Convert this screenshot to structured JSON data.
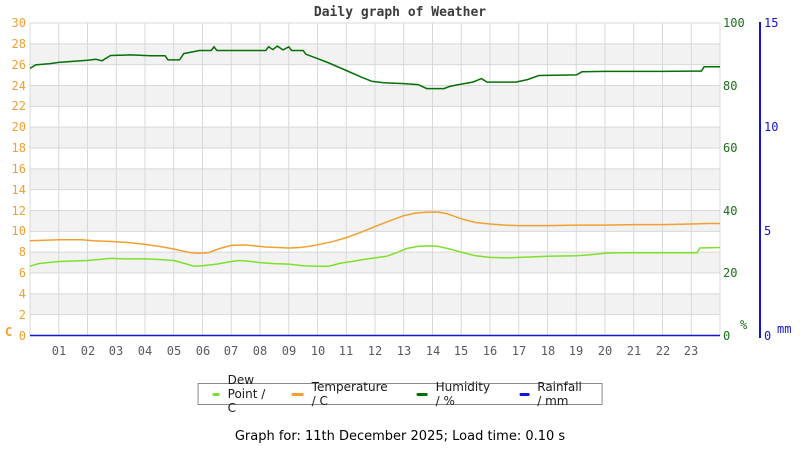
{
  "caption": "Graph for: 11th December 2025; Load time: 0.10 s",
  "chart_data": {
    "type": "line",
    "title": "Daily graph of Weather",
    "x_axis": {
      "range": [
        0,
        24
      ],
      "tick_labels": [
        "01",
        "02",
        "03",
        "04",
        "05",
        "06",
        "07",
        "08",
        "09",
        "10",
        "11",
        "12",
        "13",
        "14",
        "15",
        "16",
        "17",
        "18",
        "19",
        "20",
        "21",
        "22",
        "23"
      ],
      "label_color": "#5a5a5a"
    },
    "y_axes": [
      {
        "id": "C",
        "side": "left",
        "unit": "C",
        "range": [
          0,
          30
        ],
        "ticks": [
          0,
          2,
          4,
          6,
          8,
          10,
          12,
          14,
          16,
          18,
          20,
          22,
          24,
          26,
          28,
          30
        ],
        "color": "#f0a030"
      },
      {
        "id": "pct",
        "side": "right",
        "unit": "%",
        "range": [
          0,
          100
        ],
        "ticks": [
          0,
          20,
          40,
          60,
          80,
          100
        ],
        "color": "#1c6e1c"
      },
      {
        "id": "mm",
        "side": "right_outer",
        "unit": "mm",
        "range": [
          0,
          15
        ],
        "ticks": [
          0,
          5,
          10,
          15
        ],
        "color": "#1414d2"
      }
    ],
    "style": {
      "stripe_color": "#f2f2f2",
      "grid_color": "#d8d8d8",
      "background": "#ffffff"
    },
    "legend_position": "bottom",
    "series": [
      {
        "name": "dew-point",
        "legend_label": "Dew Point / C",
        "color": "#7fe02a",
        "axis": "C",
        "points": [
          [
            0,
            6.65
          ],
          [
            0.3,
            6.9
          ],
          [
            0.6,
            7.0
          ],
          [
            1,
            7.1
          ],
          [
            1.5,
            7.15
          ],
          [
            2,
            7.2
          ],
          [
            2.4,
            7.3
          ],
          [
            2.8,
            7.4
          ],
          [
            3.3,
            7.35
          ],
          [
            4,
            7.35
          ],
          [
            4.5,
            7.3
          ],
          [
            5,
            7.2
          ],
          [
            5.4,
            6.9
          ],
          [
            5.7,
            6.65
          ],
          [
            6,
            6.7
          ],
          [
            6.5,
            6.85
          ],
          [
            7,
            7.1
          ],
          [
            7.3,
            7.2
          ],
          [
            7.7,
            7.1
          ],
          [
            8,
            7.0
          ],
          [
            8.5,
            6.9
          ],
          [
            9,
            6.85
          ],
          [
            9.5,
            6.7
          ],
          [
            10,
            6.65
          ],
          [
            10.4,
            6.65
          ],
          [
            10.8,
            6.95
          ],
          [
            11.2,
            7.1
          ],
          [
            11.6,
            7.3
          ],
          [
            12,
            7.45
          ],
          [
            12.4,
            7.6
          ],
          [
            12.8,
            8.0
          ],
          [
            13.1,
            8.35
          ],
          [
            13.5,
            8.55
          ],
          [
            13.9,
            8.6
          ],
          [
            14.2,
            8.55
          ],
          [
            14.6,
            8.3
          ],
          [
            15,
            8.0
          ],
          [
            15.5,
            7.65
          ],
          [
            16,
            7.5
          ],
          [
            16.6,
            7.45
          ],
          [
            17,
            7.5
          ],
          [
            17.5,
            7.55
          ],
          [
            18,
            7.6
          ],
          [
            19,
            7.65
          ],
          [
            19.5,
            7.75
          ],
          [
            20,
            7.9
          ],
          [
            20.5,
            7.95
          ],
          [
            22,
            7.95
          ],
          [
            23.2,
            7.95
          ],
          [
            23.3,
            8.4
          ],
          [
            24,
            8.45
          ]
        ]
      },
      {
        "name": "temperature",
        "legend_label": "Temperature / C",
        "color": "#f0a030",
        "axis": "C",
        "points": [
          [
            0,
            9.1
          ],
          [
            0.5,
            9.15
          ],
          [
            1,
            9.2
          ],
          [
            1.8,
            9.2
          ],
          [
            2.2,
            9.1
          ],
          [
            3,
            9.0
          ],
          [
            3.5,
            8.9
          ],
          [
            4,
            8.75
          ],
          [
            4.5,
            8.55
          ],
          [
            5,
            8.3
          ],
          [
            5.5,
            8.0
          ],
          [
            5.8,
            7.9
          ],
          [
            6.2,
            7.95
          ],
          [
            6.6,
            8.35
          ],
          [
            7,
            8.65
          ],
          [
            7.5,
            8.7
          ],
          [
            7.8,
            8.6
          ],
          [
            8.2,
            8.5
          ],
          [
            8.6,
            8.45
          ],
          [
            9,
            8.4
          ],
          [
            9.4,
            8.45
          ],
          [
            9.8,
            8.6
          ],
          [
            10.5,
            9.0
          ],
          [
            11,
            9.4
          ],
          [
            11.5,
            9.9
          ],
          [
            12,
            10.45
          ],
          [
            12.5,
            11.0
          ],
          [
            13,
            11.5
          ],
          [
            13.4,
            11.75
          ],
          [
            13.8,
            11.85
          ],
          [
            14.2,
            11.85
          ],
          [
            14.5,
            11.7
          ],
          [
            15,
            11.2
          ],
          [
            15.5,
            10.85
          ],
          [
            16,
            10.7
          ],
          [
            16.5,
            10.6
          ],
          [
            17,
            10.55
          ],
          [
            18,
            10.55
          ],
          [
            19,
            10.6
          ],
          [
            20,
            10.6
          ],
          [
            21,
            10.65
          ],
          [
            22,
            10.65
          ],
          [
            23,
            10.7
          ],
          [
            23.6,
            10.75
          ],
          [
            24,
            10.75
          ]
        ]
      },
      {
        "name": "humidity",
        "legend_label": "Humidity / %",
        "color": "#066f06",
        "axis": "pct",
        "points": [
          [
            0,
            85.5
          ],
          [
            0.2,
            86.6
          ],
          [
            0.7,
            87.0
          ],
          [
            1,
            87.4
          ],
          [
            1.6,
            87.8
          ],
          [
            2,
            88.1
          ],
          [
            2.3,
            88.4
          ],
          [
            2.5,
            87.9
          ],
          [
            2.8,
            89.6
          ],
          [
            3.5,
            89.8
          ],
          [
            4.2,
            89.5
          ],
          [
            4.7,
            89.5
          ],
          [
            4.8,
            88.2
          ],
          [
            5.2,
            88.2
          ],
          [
            5.35,
            90.2
          ],
          [
            5.9,
            91.2
          ],
          [
            6.3,
            91.2
          ],
          [
            6.4,
            92.4
          ],
          [
            6.5,
            91.2
          ],
          [
            8.2,
            91.2
          ],
          [
            8.3,
            92.4
          ],
          [
            8.45,
            91.5
          ],
          [
            8.6,
            92.6
          ],
          [
            8.8,
            91.4
          ],
          [
            9,
            92.4
          ],
          [
            9.1,
            91.2
          ],
          [
            9.5,
            91.2
          ],
          [
            9.6,
            90.0
          ],
          [
            10,
            88.6
          ],
          [
            10.4,
            87.2
          ],
          [
            11,
            84.8
          ],
          [
            11.5,
            82.8
          ],
          [
            11.9,
            81.3
          ],
          [
            12.3,
            80.9
          ],
          [
            13,
            80.6
          ],
          [
            13.5,
            80.3
          ],
          [
            13.8,
            79.0
          ],
          [
            14.4,
            79.0
          ],
          [
            14.6,
            79.7
          ],
          [
            14.9,
            80.3
          ],
          [
            15.4,
            81.1
          ],
          [
            15.7,
            82.2
          ],
          [
            15.9,
            81.1
          ],
          [
            16.9,
            81.1
          ],
          [
            17.3,
            81.9
          ],
          [
            17.7,
            83.2
          ],
          [
            19,
            83.4
          ],
          [
            19.2,
            84.4
          ],
          [
            20,
            84.5
          ],
          [
            22,
            84.5
          ],
          [
            23,
            84.6
          ],
          [
            23.35,
            84.6
          ],
          [
            23.45,
            86.0
          ],
          [
            24,
            86.0
          ]
        ]
      },
      {
        "name": "rainfall",
        "legend_label": "Rainfall / mm",
        "color": "#1414d2",
        "axis": "mm",
        "points": [
          [
            0,
            0
          ],
          [
            24,
            0
          ]
        ]
      }
    ]
  }
}
